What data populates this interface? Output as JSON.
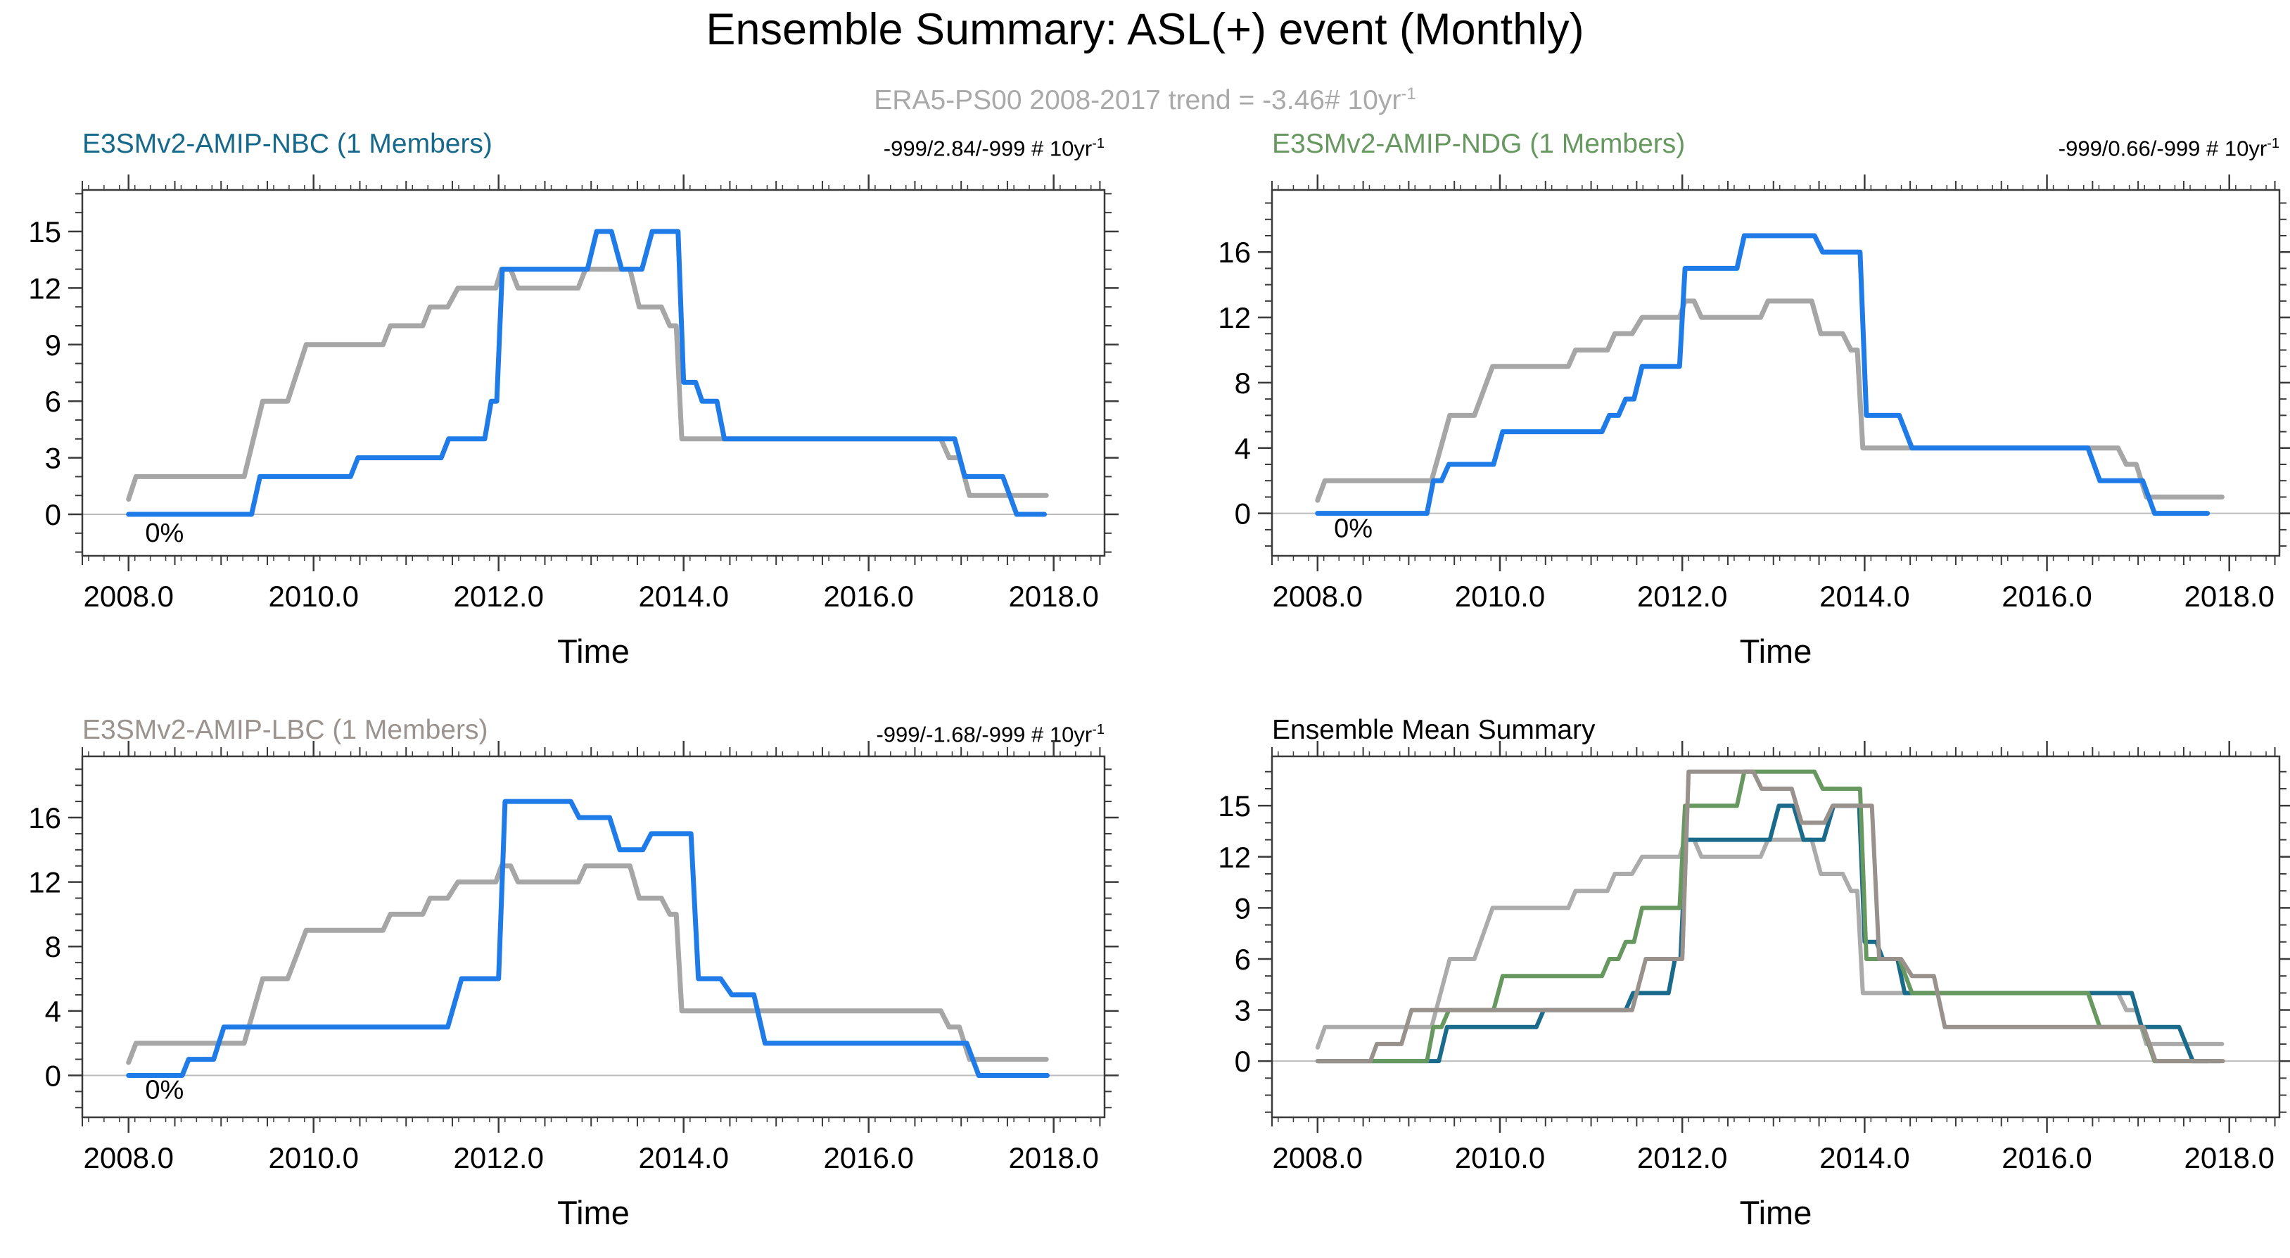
{
  "page_title": "Ensemble Summary: ASL(+) event (Monthly)",
  "subtitle": {
    "text": "ERA5-PS00 2008-2017 trend = -3.46# 10yr",
    "sup": "-1"
  },
  "colors": {
    "member_blue": "#1F7BE8",
    "era5_gray": "#A6A6A6",
    "nbc_teal": "#17698C",
    "ndg_green": "#66985F",
    "lbc_gray": "#9A938E",
    "subtitle_gray": "#A9A9A9",
    "axis_dark": "#3A3A3A",
    "zero_line": "#BDBDBD",
    "text_black": "#000000"
  },
  "chart_data": {
    "type": "line",
    "title": "Ensemble Summary: ASL(+) event (Monthly)",
    "reference_note": "ERA5-PS00 2008-2017 trend = -3.46# 10yr-1",
    "x_axis": {
      "label": "Time",
      "range": [
        2007.5,
        2018.55
      ],
      "major_ticks": [
        2008,
        2010,
        2012,
        2014,
        2016,
        2018
      ],
      "tick_labels": [
        "2008.0",
        "2010.0",
        "2012.0",
        "2014.0",
        "2016.0",
        "2018.0"
      ],
      "minor_step": 0.5,
      "subminor_step": 0.1667,
      "grid": false
    },
    "series": {
      "era5": {
        "name": "ERA5-PS00",
        "points": [
          [
            2008.0,
            0.8
          ],
          [
            2008.08,
            2
          ],
          [
            2009.25,
            2
          ],
          [
            2009.45,
            6
          ],
          [
            2009.72,
            6
          ],
          [
            2009.92,
            9
          ],
          [
            2010.75,
            9
          ],
          [
            2010.83,
            10
          ],
          [
            2011.18,
            10
          ],
          [
            2011.26,
            11
          ],
          [
            2011.45,
            11
          ],
          [
            2011.56,
            12
          ],
          [
            2011.97,
            12
          ],
          [
            2012.03,
            13
          ],
          [
            2012.13,
            13
          ],
          [
            2012.21,
            12
          ],
          [
            2012.86,
            12
          ],
          [
            2012.94,
            13
          ],
          [
            2013.42,
            13
          ],
          [
            2013.52,
            11
          ],
          [
            2013.76,
            11
          ],
          [
            2013.85,
            10
          ],
          [
            2013.92,
            10
          ],
          [
            2013.98,
            4
          ],
          [
            2016.78,
            4
          ],
          [
            2016.87,
            3
          ],
          [
            2016.98,
            3
          ],
          [
            2017.09,
            1
          ],
          [
            2017.92,
            1
          ]
        ]
      },
      "nbc": {
        "name": "E3SMv2-AMIP-NBC",
        "points": [
          [
            2008.0,
            0
          ],
          [
            2009.33,
            0
          ],
          [
            2009.42,
            2
          ],
          [
            2010.4,
            2
          ],
          [
            2010.48,
            3
          ],
          [
            2011.38,
            3
          ],
          [
            2011.46,
            4
          ],
          [
            2011.85,
            4
          ],
          [
            2011.92,
            6
          ],
          [
            2011.98,
            6
          ],
          [
            2012.04,
            13
          ],
          [
            2012.96,
            13
          ],
          [
            2013.06,
            15
          ],
          [
            2013.22,
            15
          ],
          [
            2013.33,
            13
          ],
          [
            2013.55,
            13
          ],
          [
            2013.66,
            15
          ],
          [
            2013.94,
            15
          ],
          [
            2014.0,
            7
          ],
          [
            2014.13,
            7
          ],
          [
            2014.2,
            6
          ],
          [
            2014.36,
            6
          ],
          [
            2014.44,
            4
          ],
          [
            2016.93,
            4
          ],
          [
            2017.04,
            2
          ],
          [
            2017.45,
            2
          ],
          [
            2017.6,
            0
          ],
          [
            2017.9,
            0
          ]
        ]
      },
      "ndg": {
        "name": "E3SMv2-AMIP-NDG",
        "points": [
          [
            2008.0,
            0
          ],
          [
            2009.2,
            0
          ],
          [
            2009.27,
            2
          ],
          [
            2009.36,
            2
          ],
          [
            2009.44,
            3
          ],
          [
            2009.93,
            3
          ],
          [
            2010.03,
            5
          ],
          [
            2011.12,
            5
          ],
          [
            2011.2,
            6
          ],
          [
            2011.3,
            6
          ],
          [
            2011.38,
            7
          ],
          [
            2011.47,
            7
          ],
          [
            2011.56,
            9
          ],
          [
            2011.97,
            9
          ],
          [
            2012.03,
            15
          ],
          [
            2012.6,
            15
          ],
          [
            2012.68,
            17
          ],
          [
            2013.45,
            17
          ],
          [
            2013.54,
            16
          ],
          [
            2013.95,
            16
          ],
          [
            2014.02,
            6
          ],
          [
            2014.38,
            6
          ],
          [
            2014.52,
            4
          ],
          [
            2016.45,
            4
          ],
          [
            2016.58,
            2
          ],
          [
            2017.05,
            2
          ],
          [
            2017.18,
            0
          ],
          [
            2017.76,
            0
          ]
        ]
      },
      "lbc": {
        "name": "E3SMv2-AMIP-LBC",
        "points": [
          [
            2008.0,
            0
          ],
          [
            2008.58,
            0
          ],
          [
            2008.65,
            1
          ],
          [
            2008.92,
            1
          ],
          [
            2009.03,
            3
          ],
          [
            2011.45,
            3
          ],
          [
            2011.6,
            6
          ],
          [
            2012.0,
            6
          ],
          [
            2012.07,
            17
          ],
          [
            2012.78,
            17
          ],
          [
            2012.87,
            16
          ],
          [
            2013.2,
            16
          ],
          [
            2013.31,
            14
          ],
          [
            2013.56,
            14
          ],
          [
            2013.65,
            15
          ],
          [
            2014.08,
            15
          ],
          [
            2014.16,
            6
          ],
          [
            2014.4,
            6
          ],
          [
            2014.52,
            5
          ],
          [
            2014.76,
            5
          ],
          [
            2014.88,
            2
          ],
          [
            2017.06,
            2
          ],
          [
            2017.19,
            0
          ],
          [
            2017.93,
            0
          ]
        ]
      }
    },
    "panels": [
      {
        "title": "E3SMv2-AMIP-NBC (1 Members)",
        "title_color": "#17698C",
        "trend": "-999/2.84/-999 # 10yr",
        "trend_sup": "-1",
        "y_ticks": [
          0,
          3,
          6,
          9,
          12,
          15
        ],
        "y_minor_step": 1,
        "y_range": [
          -2.2,
          17.2
        ],
        "zero_label": "0%",
        "line_width": 7,
        "lines": [
          {
            "series": "era5",
            "color": "#A6A6A6"
          },
          {
            "series": "nbc",
            "color": "#1F7BE8"
          }
        ]
      },
      {
        "title": "E3SMv2-AMIP-NDG (1 Members)",
        "title_color": "#66985F",
        "trend": "-999/0.66/-999 # 10yr",
        "trend_sup": "-1",
        "y_ticks": [
          0,
          4,
          8,
          12,
          16
        ],
        "y_minor_step": 1,
        "y_range": [
          -2.6,
          19.8
        ],
        "zero_label": "0%",
        "line_width": 7,
        "lines": [
          {
            "series": "era5",
            "color": "#A6A6A6"
          },
          {
            "series": "ndg",
            "color": "#1F7BE8"
          }
        ]
      },
      {
        "title": "E3SMv2-AMIP-LBC (1 Members)",
        "title_color": "#9A938E",
        "trend": "-999/-1.68/-999 # 10yr",
        "trend_sup": "-1",
        "y_ticks": [
          0,
          4,
          8,
          12,
          16
        ],
        "y_minor_step": 1,
        "y_range": [
          -2.6,
          19.8
        ],
        "zero_label": "0%",
        "line_width": 7,
        "lines": [
          {
            "series": "era5",
            "color": "#A6A6A6"
          },
          {
            "series": "lbc",
            "color": "#1F7BE8"
          }
        ]
      },
      {
        "title": "Ensemble Mean Summary",
        "title_color": "#000000",
        "trend": "",
        "trend_sup": "",
        "y_ticks": [
          0,
          3,
          6,
          9,
          12,
          15
        ],
        "y_minor_step": 1,
        "y_range": [
          -3.3,
          17.9
        ],
        "zero_label": "",
        "line_width": 6,
        "lines": [
          {
            "series": "era5",
            "color": "#ABABAB"
          },
          {
            "series": "nbc",
            "color": "#1A6A8C"
          },
          {
            "series": "ndg",
            "color": "#67985F"
          },
          {
            "series": "lbc",
            "color": "#99918C"
          }
        ]
      }
    ]
  }
}
